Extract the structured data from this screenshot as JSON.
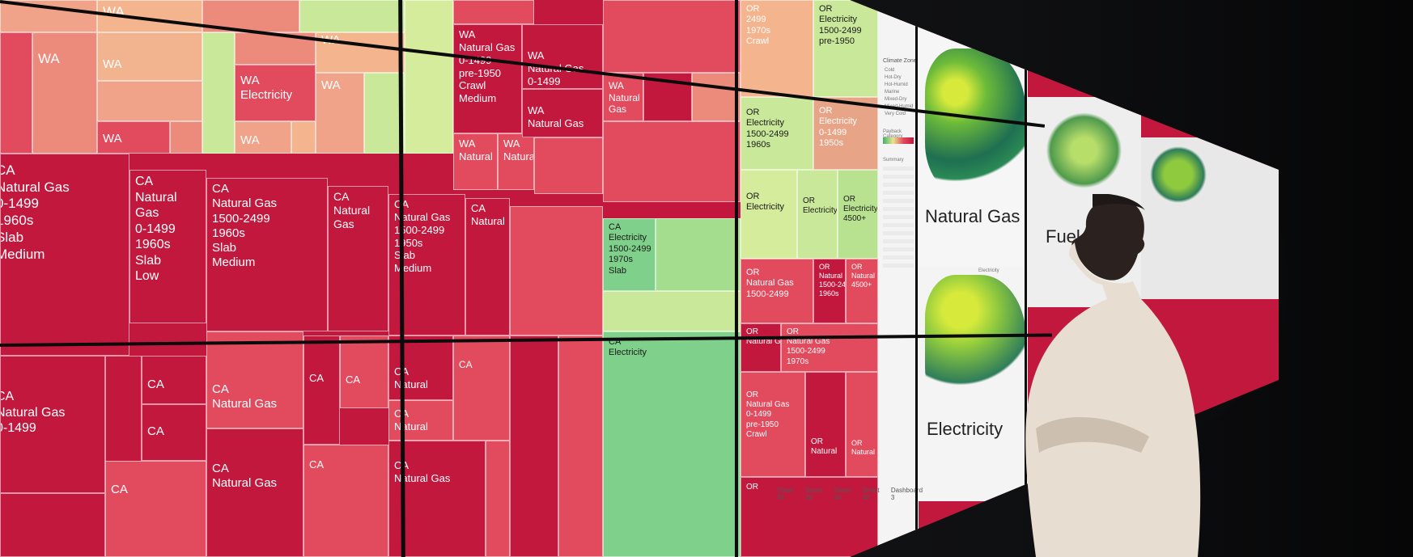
{
  "scene": "wall-display",
  "treemap_labels": {
    "wa_top_1": "WA",
    "wa_top_2": "WA",
    "wa_top_3": "WA",
    "wa_mid_1": "WA",
    "wa_mid_2": "WA",
    "wa_elec": "WA\nElectricity",
    "wa_r2_1": "WA",
    "wa_r2_2": "WA",
    "wa_r2_3": "WA",
    "wa_gas_block": "WA\nNatural Gas\n0-1499\npre-1950\nCrawl\nMedium",
    "wa_gas_2": "WA\nNatural Gas\n0-1499",
    "wa_nat_gas": "WA\nNatural Gas",
    "wa_natural": "WA\nNatural",
    "wa_natural_2": "WA\nNatural",
    "wa_nat_3": "WA\nNatural\nGas",
    "ca_big_1": "CA\nNatural Gas\n0-1499\n1960s\nSlab\nMedium",
    "ca_big_2": "CA\nNatural\nGas\n0-1499\n1960s\nSlab\nLow",
    "ca_big_3": "CA\nNatural Gas\n1500-2499\n1960s\nSlab\nMedium",
    "ca_big_4": "CA\nNatural\nGas",
    "ca_big_5": "CA\nNatural Gas\n1500-2499\n1950s\nSlab\nMedium",
    "ca_big_6": "CA\nNatural",
    "ca_elec": "CA\nElectricity\n1500-2499\n1970s\nSlab",
    "ca_elec_2": "CA\nElectricity",
    "ca_low_1": "CA\nNatural Gas\n0-1499",
    "ca_low_2": "CA\nNatural Gas",
    "ca_low_3": "CA\nNatural",
    "ca_low_4": "CA\nNatural",
    "ca_low_5": "CA\nNatural Gas",
    "ca_low_6": "CA\nNatural Gas",
    "ca_sm_1": "CA",
    "ca_sm_2": "CA",
    "ca_sm_3": "CA",
    "ca_sm_4": "CA",
    "ca_sm_5": "CA",
    "ca_sm_6": "CA",
    "ca_sm_7": "CA",
    "or_1": "OR\n2499\n1970s\nCrawl",
    "or_2": "OR\nElectricity\n1500-2499\npre-1950",
    "or_3": "OR\nElectricity\n1500-2499\n1960s",
    "or_4": "OR\nElectricity\n0-1499\n1950s",
    "or_5": "OR\nElectricity",
    "or_6": "OR\nElectricity",
    "or_7": "OR\nElectricity\n4500+",
    "or_8": "OR\nNatural Gas\n1500-2499",
    "or_9": "OR\nNatural Gas",
    "or_10": "OR\nNatural Gas\n1500-2499\n1970s",
    "or_11": "OR\nNatural Gas\n0-1499\npre-1950\nCrawl",
    "or_12": "OR\nNatural Gas\n1500-2499\n1960s",
    "or_13": "OR\nNatural Gas\n4500+",
    "or_14": "OR\nNatural",
    "or_15": "OR\nNatural",
    "or_16": "OR"
  },
  "legend_panel": {
    "title": "Climate Zone",
    "items": [
      "Cold",
      "Hot-Dry",
      "Hot-Humid",
      "Marine",
      "Mixed-Dry",
      "Mixed-Humid",
      "Very Cold"
    ],
    "gradient_title": "Payback Category",
    "summary_title": "Summary"
  },
  "maps": {
    "map1_title": "Natural Gas",
    "map2_title": "Electricity",
    "map3_title": "Fuel Oil",
    "panel_caption": "Electricity"
  },
  "tabs": [
    "Sheet 33",
    "Sheet 30",
    "Sheet 34",
    "Sheet 32",
    "Dashboard 3"
  ],
  "colors": {
    "deep_red": "#c2183e",
    "red": "#e24a5d",
    "salmon": "#ec8d7c",
    "peach": "#f2b48f",
    "light_green": "#c9e89a",
    "green": "#7fd08a",
    "mid_green": "#a4dd8e"
  }
}
